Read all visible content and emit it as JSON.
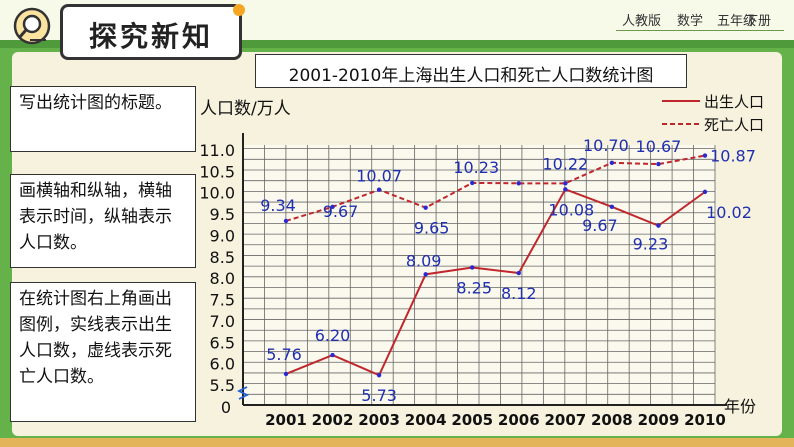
{
  "header": {
    "section_title": "探究新知",
    "publisher": "人教版",
    "subject": "数学",
    "grade": "五年级",
    "volume": "下册"
  },
  "notes": [
    "写出统计图的标题。",
    "画横轴和纵轴，横轴表示时间，纵轴表示人口数。",
    "在统计图右上角画出图例，实线表示出生人口数，虚线表示死亡人口数。"
  ],
  "colors": {
    "birth_line": "#c0272d",
    "label_text": "#1f2fb0",
    "grid": "#555555"
  },
  "chart_data": {
    "type": "line",
    "title": "2001-2010年上海出生人口和死亡人口数统计图",
    "ylabel": "人口数/万人",
    "xlabel": "年份",
    "categories": [
      "2001",
      "2002",
      "2003",
      "2004",
      "2005",
      "2006",
      "2007",
      "2008",
      "2009",
      "2010"
    ],
    "ylim": [
      5.5,
      11.0
    ],
    "y_ticks": [
      "5.5",
      "6.0",
      "6.5",
      "7.0",
      "7.5",
      "8.0",
      "8.5",
      "9.0",
      "9.5",
      "10.0",
      "10.5",
      "11.0"
    ],
    "y_zero_label": "0",
    "y_axis_break": true,
    "grid": true,
    "legend_position": "top-right",
    "series": [
      {
        "name": "出生人口",
        "style": "solid",
        "values": [
          5.76,
          6.2,
          5.73,
          8.09,
          8.25,
          8.12,
          10.08,
          9.67,
          9.23,
          10.02
        ],
        "labels": [
          "5.76",
          "6.20",
          "5.73",
          "8.09",
          "8.25",
          "8.12",
          "10.08",
          "9.67",
          "9.23",
          "10.02"
        ]
      },
      {
        "name": "死亡人口",
        "style": "dashed",
        "values": [
          9.34,
          9.67,
          10.07,
          9.65,
          10.23,
          10.22,
          10.22,
          10.7,
          10.67,
          10.87
        ],
        "labels": [
          "9.34",
          "9.67",
          "10.07",
          "9.65",
          "10.23",
          "",
          "10.22",
          "10.70",
          "10.67",
          "10.87"
        ]
      }
    ]
  }
}
